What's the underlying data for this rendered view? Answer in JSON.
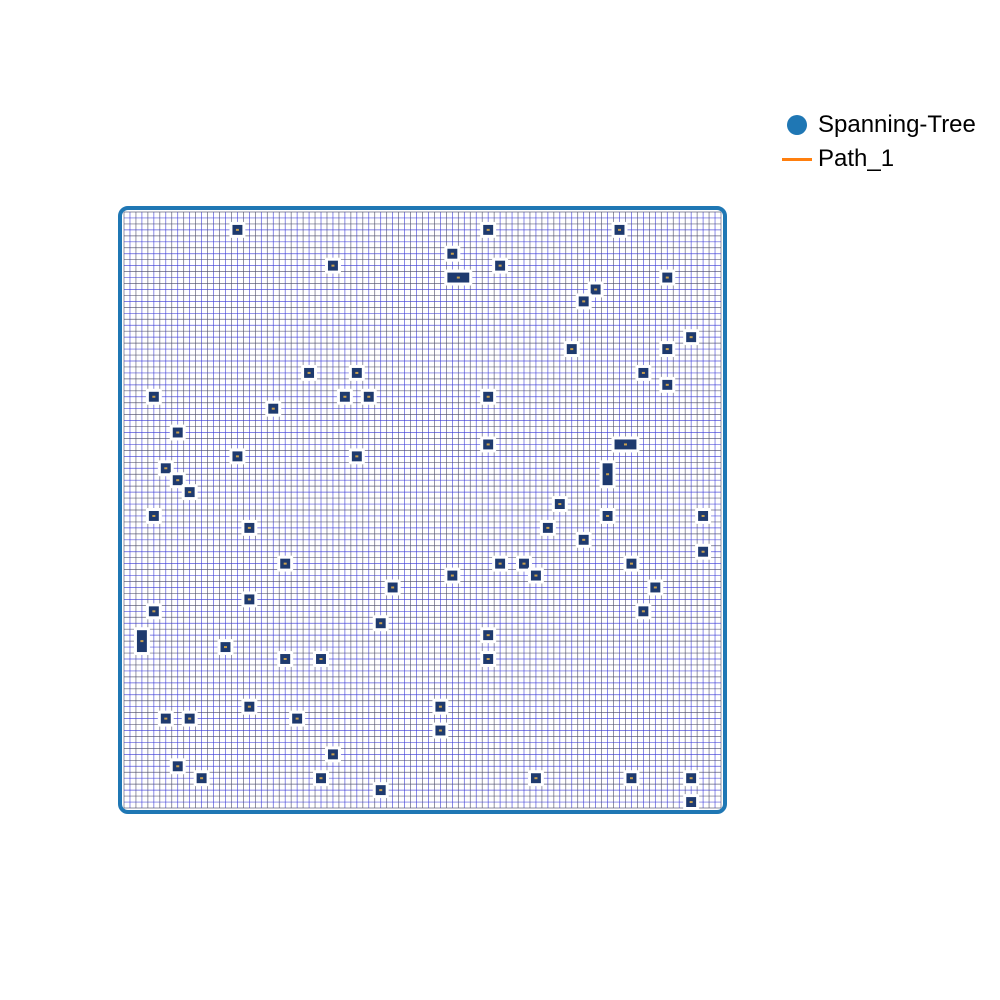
{
  "legend": {
    "items": [
      {
        "label": "Spanning-Tree",
        "marker": "dot",
        "color": "#1f77b4"
      },
      {
        "label": "Path_1",
        "marker": "line",
        "color": "#ff7f0e"
      }
    ]
  },
  "colors": {
    "grid_line": "#4a4a68",
    "grid_line_alt": "#3b3bd6",
    "node_border": "#1f77b4",
    "obstacle_fill": "#1e3a6e",
    "obstacle_mark": "#c8a050",
    "background": "#ffffff"
  },
  "grid": {
    "columns": 50,
    "rows": 50
  },
  "obstacles": [
    [
      9,
      1
    ],
    [
      30,
      1
    ],
    [
      41,
      1
    ],
    [
      27,
      3
    ],
    [
      17,
      4
    ],
    [
      31,
      4
    ],
    [
      27,
      5
    ],
    [
      45,
      5
    ],
    [
      39,
      6
    ],
    [
      38,
      7
    ],
    [
      47,
      10
    ],
    [
      37,
      11
    ],
    [
      45,
      11
    ],
    [
      15,
      13
    ],
    [
      19,
      13
    ],
    [
      43,
      13
    ],
    [
      45,
      14
    ],
    [
      2,
      15
    ],
    [
      18,
      15
    ],
    [
      20,
      15
    ],
    [
      30,
      15
    ],
    [
      12,
      16
    ],
    [
      4,
      18
    ],
    [
      30,
      19
    ],
    [
      41,
      19
    ],
    [
      9,
      20
    ],
    [
      19,
      20
    ],
    [
      3,
      21
    ],
    [
      40,
      22
    ],
    [
      4,
      22
    ],
    [
      5,
      23
    ],
    [
      36,
      24
    ],
    [
      2,
      25
    ],
    [
      40,
      25
    ],
    [
      48,
      25
    ],
    [
      10,
      26
    ],
    [
      35,
      26
    ],
    [
      38,
      27
    ],
    [
      48,
      28
    ],
    [
      13,
      29
    ],
    [
      31,
      29
    ],
    [
      33,
      29
    ],
    [
      42,
      29
    ],
    [
      27,
      30
    ],
    [
      34,
      30
    ],
    [
      22,
      31
    ],
    [
      44,
      31
    ],
    [
      10,
      32
    ],
    [
      2,
      33
    ],
    [
      43,
      33
    ],
    [
      21,
      34
    ],
    [
      30,
      35
    ],
    [
      8,
      36
    ],
    [
      13,
      37
    ],
    [
      16,
      37
    ],
    [
      30,
      37
    ],
    [
      10,
      41
    ],
    [
      26,
      41
    ],
    [
      3,
      42
    ],
    [
      5,
      42
    ],
    [
      14,
      42
    ],
    [
      26,
      43
    ],
    [
      17,
      45
    ],
    [
      4,
      46
    ],
    [
      6,
      47
    ],
    [
      16,
      47
    ],
    [
      34,
      47
    ],
    [
      42,
      47
    ],
    [
      47,
      47
    ],
    [
      21,
      48
    ],
    [
      47,
      49
    ]
  ],
  "wide_obstacles": [
    [
      27,
      5,
      2
    ],
    [
      41,
      19,
      2
    ]
  ],
  "tall_obstacles": [
    [
      40,
      21,
      2
    ],
    [
      1,
      35,
      2
    ]
  ]
}
